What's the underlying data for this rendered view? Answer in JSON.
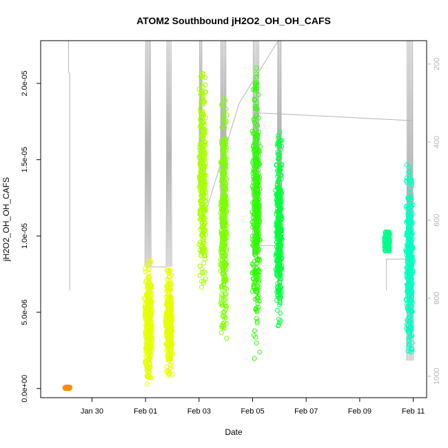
{
  "chart_data": {
    "type": "scatter",
    "title": "ATOM2 Southbound jH2O2_OH_OH_CAFS",
    "xlabel": "Date",
    "ylabel": "jH2O2_OH_OH_CAFS",
    "xlim": [
      "2017-01-28T02:00",
      "2017-02-11T12:00"
    ],
    "ylim": [
      -6e-07,
      2.28e-05
    ],
    "x_ticks": [
      "Jan 30",
      "Feb 01",
      "Feb 03",
      "Feb 05",
      "Feb 07",
      "Feb 09",
      "Feb 11"
    ],
    "x_tick_dates": [
      "2017-01-30",
      "2017-02-01",
      "2017-02-03",
      "2017-02-05",
      "2017-02-07",
      "2017-02-09",
      "2017-02-11"
    ],
    "y_ticks": [
      "0.0e+00",
      "5.0e-06",
      "1.0e-05",
      "1.5e-05",
      "2.0e-05"
    ],
    "y_tick_values": [
      0,
      5e-06,
      1e-05,
      1.5e-05,
      2e-05
    ],
    "secondary_axis": {
      "position": "right",
      "inverted": true,
      "ylim": [
        1055,
        140
      ],
      "ticks": [
        "200",
        "400",
        "600",
        "800",
        "1000"
      ],
      "tick_values": [
        200,
        400,
        600,
        800,
        1000
      ],
      "color": "#b5b5b5"
    },
    "series": [
      {
        "date": "2017-01-29",
        "color": "#ff8c00",
        "y_min": 0.0,
        "y_max": 1e-07,
        "t_start": "2017-01-29T01:00",
        "t_end": "2017-01-29T03:00"
      },
      {
        "date": "2017-01-31",
        "color": "#e6ff00",
        "y_min": 2e-07,
        "y_max": 8.5e-06,
        "t_start": "2017-01-31T23:00",
        "t_end": "2017-02-01T06:00"
      },
      {
        "date": "2017-02-01",
        "color": "#e6ff00",
        "y_min": 8e-07,
        "y_max": 7.8e-06,
        "t_start": "2017-02-01T18:00",
        "t_end": "2017-02-02T00:00"
      },
      {
        "date": "2017-02-03",
        "color": "#a8ff00",
        "y_min": 6.5e-06,
        "y_max": 2.08e-05,
        "t_start": "2017-02-03T00:00",
        "t_end": "2017-02-03T06:00"
      },
      {
        "date": "2017-02-03b",
        "color": "#7dff00",
        "y_min": 3.2e-06,
        "y_max": 1.93e-05,
        "t_start": "2017-02-03T19:00",
        "t_end": "2017-02-04T01:00"
      },
      {
        "date": "2017-02-05",
        "color": "#2bff00",
        "y_min": 1.8e-06,
        "y_max": 2.15e-05,
        "t_start": "2017-02-04T23:00",
        "t_end": "2017-02-05T07:00"
      },
      {
        "date": "2017-02-05b",
        "color": "#00ff3a",
        "y_min": 4e-06,
        "y_max": 1.68e-05,
        "t_start": "2017-02-05T21:00",
        "t_end": "2017-02-06T02:00"
      },
      {
        "date": "2017-02-10",
        "color": "#00ff8c",
        "y_min": 9e-06,
        "y_max": 1.03e-05,
        "t_start": "2017-02-09T23:00",
        "t_end": "2017-02-10T02:00"
      },
      {
        "date": "2017-02-11",
        "color": "#00ffbf",
        "y_min": 1.8e-06,
        "y_max": 1.47e-05,
        "t_start": "2017-02-10T17:00",
        "t_end": "2017-02-11T00:00"
      }
    ],
    "pressure_trace_color": "#b5b5b5",
    "grid": false,
    "legend": false
  }
}
